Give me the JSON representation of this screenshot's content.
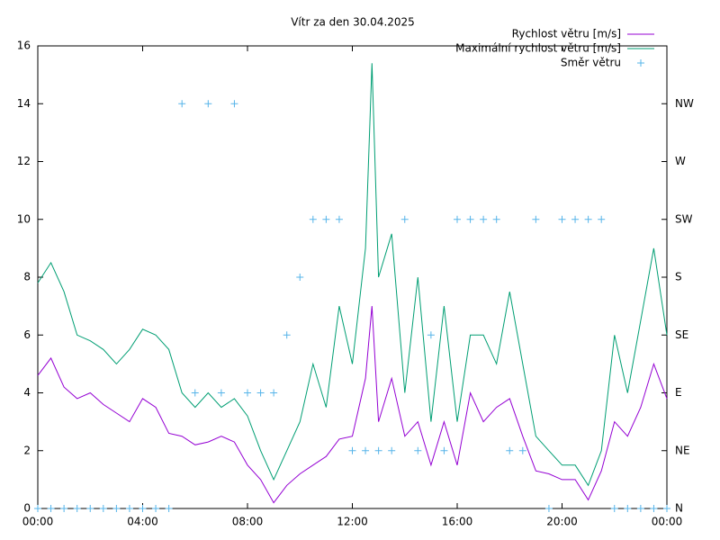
{
  "chart_data": {
    "type": "line",
    "title": "Vítr za den 30.04.2025",
    "xlim": [
      0,
      24
    ],
    "xticks": [
      {
        "value": 0,
        "label": "00:00"
      },
      {
        "value": 4,
        "label": "04:00"
      },
      {
        "value": 8,
        "label": "08:00"
      },
      {
        "value": 12,
        "label": "12:00"
      },
      {
        "value": 16,
        "label": "16:00"
      },
      {
        "value": 20,
        "label": "20:00"
      },
      {
        "value": 24,
        "label": "00:00"
      }
    ],
    "ylim": [
      0,
      16
    ],
    "yticks": [
      0,
      2,
      4,
      6,
      8,
      10,
      12,
      14,
      16
    ],
    "y2lim": [
      0,
      16
    ],
    "y2ticks": [
      {
        "value": 0,
        "label": "N"
      },
      {
        "value": 2,
        "label": "NE"
      },
      {
        "value": 4,
        "label": "E"
      },
      {
        "value": 6,
        "label": "SE"
      },
      {
        "value": 8,
        "label": "S"
      },
      {
        "value": 10,
        "label": "SW"
      },
      {
        "value": 12,
        "label": "W"
      },
      {
        "value": 14,
        "label": "NW"
      }
    ],
    "legend": "top-right",
    "series": [
      {
        "name": "Rychlost větru [m/s]",
        "color": "#9400d3",
        "style": "line",
        "x": [
          0,
          0.5,
          1,
          1.5,
          2,
          2.5,
          3,
          3.5,
          4,
          4.5,
          5,
          5.5,
          6,
          6.5,
          7,
          7.5,
          8,
          8.5,
          9,
          9.5,
          10,
          10.5,
          11,
          11.5,
          12,
          12.5,
          12.75,
          13,
          13.5,
          14,
          14.5,
          15,
          15.5,
          16,
          16.5,
          17,
          17.5,
          18,
          18.5,
          19,
          19.5,
          20,
          20.5,
          21,
          21.5,
          22,
          22.5,
          23,
          23.5,
          24
        ],
        "values": [
          4.6,
          5.2,
          4.2,
          3.8,
          4.0,
          3.6,
          3.3,
          3.0,
          3.8,
          3.5,
          2.6,
          2.5,
          2.2,
          2.3,
          2.5,
          2.3,
          1.5,
          1.0,
          0.2,
          0.8,
          1.2,
          1.5,
          1.8,
          2.4,
          2.5,
          4.5,
          7.0,
          3.0,
          4.5,
          2.5,
          3.0,
          1.5,
          3.0,
          1.5,
          4.0,
          3.0,
          3.5,
          3.8,
          2.5,
          1.3,
          1.2,
          1.0,
          1.0,
          0.3,
          1.3,
          3.0,
          2.5,
          3.5,
          5.0,
          3.8
        ]
      },
      {
        "name": "Maximální rychlost větru [m/s]",
        "color": "#009e73",
        "style": "line",
        "x": [
          0,
          0.5,
          1,
          1.5,
          2,
          2.5,
          3,
          3.5,
          4,
          4.5,
          5,
          5.5,
          6,
          6.5,
          7,
          7.5,
          8,
          8.5,
          9,
          9.5,
          10,
          10.5,
          11,
          11.5,
          12,
          12.5,
          12.75,
          13,
          13.5,
          14,
          14.5,
          15,
          15.5,
          16,
          16.5,
          17,
          17.5,
          18,
          18.5,
          19,
          19.5,
          20,
          20.5,
          21,
          21.5,
          22,
          22.5,
          23,
          23.5,
          24
        ],
        "values": [
          7.8,
          8.5,
          7.5,
          6.0,
          5.8,
          5.5,
          5.0,
          5.5,
          6.2,
          6.0,
          5.5,
          4.0,
          3.5,
          4.0,
          3.5,
          3.8,
          3.2,
          2.0,
          1.0,
          2.0,
          3.0,
          5.0,
          3.5,
          7.0,
          5.0,
          9.0,
          15.4,
          8.0,
          9.5,
          4.0,
          8.0,
          3.0,
          7.0,
          3.0,
          6.0,
          6.0,
          5.0,
          7.5,
          5.0,
          2.5,
          2.0,
          1.5,
          1.5,
          0.8,
          2.0,
          6.0,
          4.0,
          6.5,
          9.0,
          6.0
        ]
      },
      {
        "name": "Směr větru",
        "color": "#56b4e9",
        "style": "points",
        "axis": "y2",
        "x": [
          0,
          0.5,
          1,
          1.5,
          2,
          2.5,
          3,
          3.5,
          4,
          4.5,
          5,
          5.5,
          6,
          6.5,
          7,
          7.5,
          8,
          8.5,
          9,
          9.5,
          10,
          10.5,
          11,
          11.5,
          12,
          12.5,
          13,
          13.5,
          14,
          14.5,
          15,
          15.5,
          16,
          16.5,
          17,
          17.5,
          18,
          18.5,
          19,
          19.5,
          20,
          20.5,
          21,
          21.5,
          22,
          22.5,
          23,
          23.5,
          24
        ],
        "values": [
          0,
          0,
          0,
          0,
          0,
          0,
          0,
          0,
          0,
          0,
          0,
          14,
          4,
          14,
          4,
          14,
          4,
          4,
          4,
          6,
          8,
          10,
          10,
          10,
          2,
          2,
          2,
          2,
          10,
          2,
          6,
          2,
          10,
          10,
          10,
          10,
          2,
          2,
          10,
          0,
          10,
          10,
          10,
          10,
          0,
          0,
          0,
          0,
          0
        ]
      }
    ]
  }
}
